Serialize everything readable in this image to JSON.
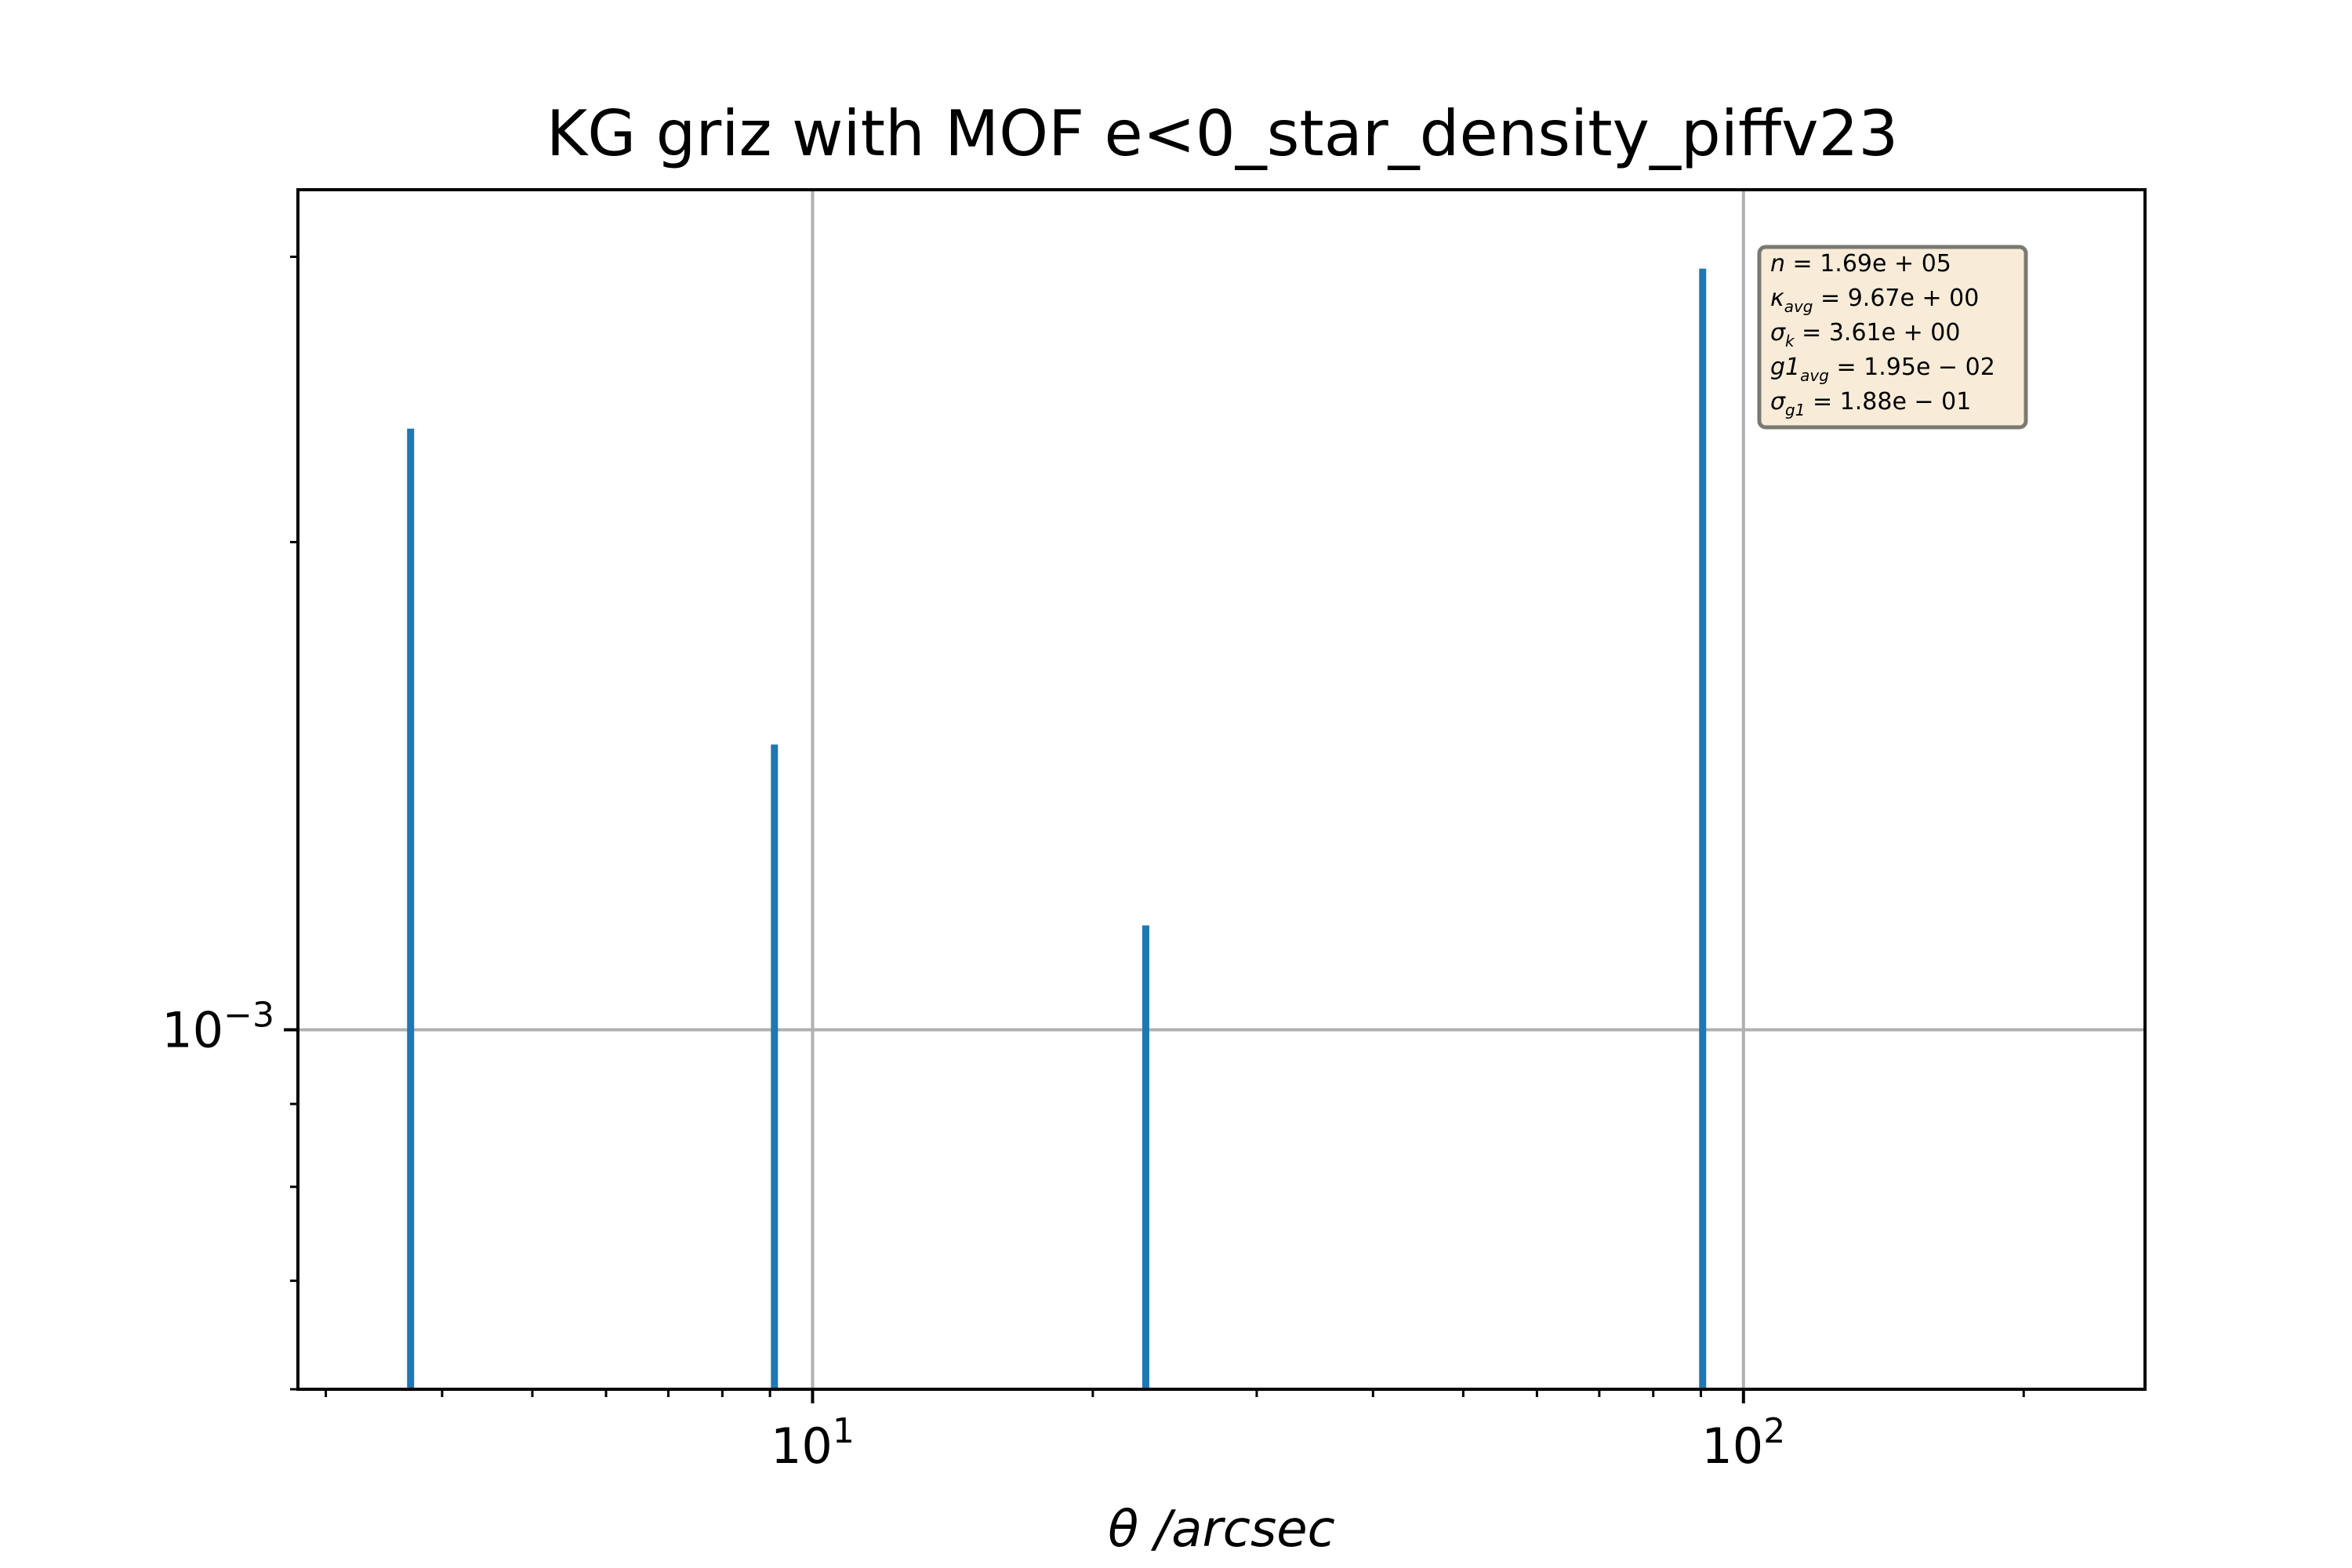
{
  "chart_data": {
    "type": "bar",
    "title": "KG griz with MOF e<0_star_density_piffv23",
    "xlabel": "θ /arcsec",
    "ylabel": "",
    "xscale": "log",
    "yscale": "log",
    "xlim": [
      2.8,
      270
    ],
    "ylim": [
      0.0006,
      0.0033
    ],
    "grid": true,
    "x_ticks": [
      {
        "value": 10,
        "base": "10",
        "exp": "1"
      },
      {
        "value": 100,
        "base": "10",
        "exp": "2"
      }
    ],
    "y_ticks": [
      {
        "value": 0.001,
        "base": "10",
        "exp": "−3"
      }
    ],
    "x": [
      3.7,
      9.1,
      22.8,
      90.4
    ],
    "values": [
      0.00235,
      0.0015,
      0.00116,
      0.00295
    ],
    "color": "#1f77b4",
    "stats_box": {
      "background": "#f8ecd8",
      "location": "top-right",
      "lines": [
        {
          "symbol": "n",
          "sub": "",
          "value": "1.69e + 05"
        },
        {
          "symbol": "κ",
          "sub": "avg",
          "value": "9.67e + 00"
        },
        {
          "symbol": "σ",
          "sub": "k",
          "value": "3.61e + 00"
        },
        {
          "symbol": "g1",
          "sub": "avg",
          "value": "1.95e − 02"
        },
        {
          "symbol": "σ",
          "sub": "g1",
          "value": "1.88e − 01"
        }
      ]
    }
  }
}
